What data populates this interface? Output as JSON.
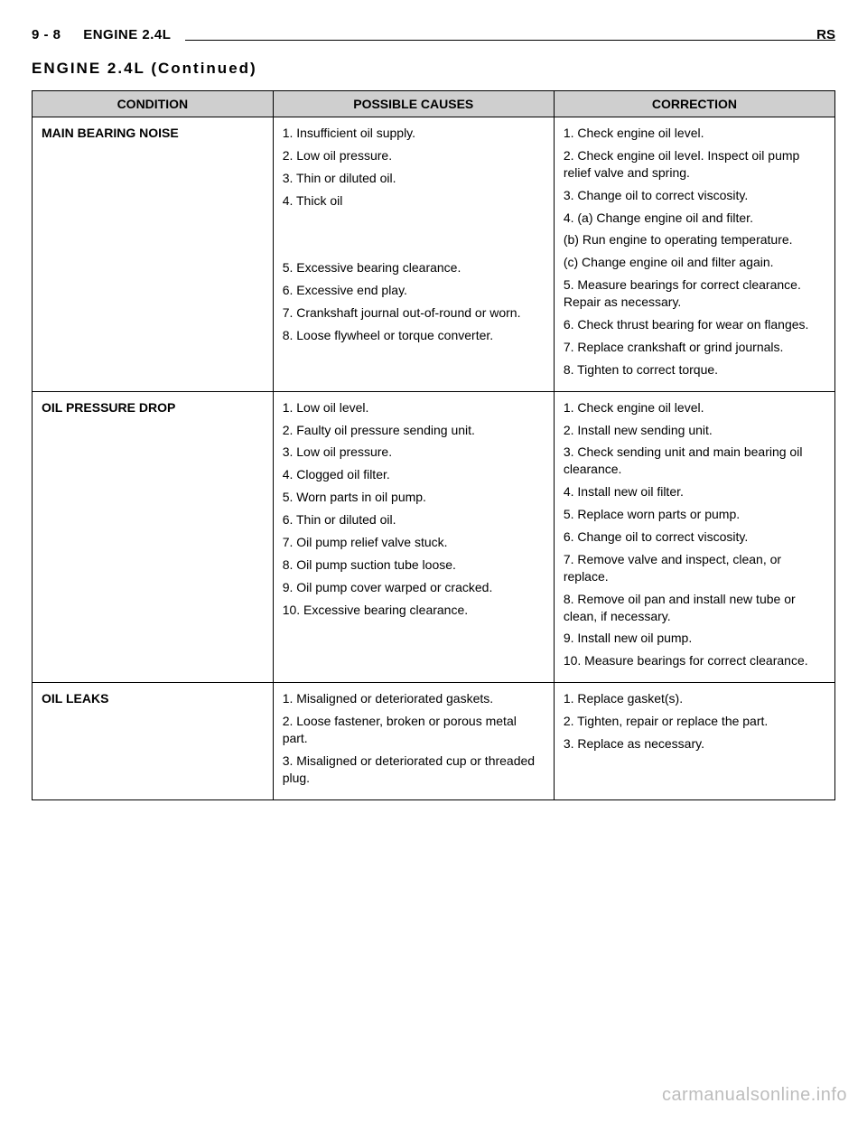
{
  "header": {
    "page_num": "9 - 8",
    "engine": "ENGINE 2.4L",
    "right": "RS"
  },
  "section_title": "ENGINE 2.4L (Continued)",
  "table": {
    "headers": [
      "CONDITION",
      "POSSIBLE CAUSES",
      "CORRECTION"
    ],
    "rows": [
      {
        "condition": "MAIN BEARING NOISE",
        "items": [
          {
            "cause": "1. Insufficient oil supply.",
            "correction": "1. Check engine oil level."
          },
          {
            "cause": "2. Low oil pressure.",
            "correction": "2. Check engine oil level. Inspect oil pump relief valve and spring."
          },
          {
            "cause": "3. Thin or diluted oil.",
            "correction": "3. Change oil to correct viscosity."
          },
          {
            "cause": "4. Thick oil",
            "correction": "4. (a) Change engine oil and filter."
          },
          {
            "cause": "",
            "correction": "(b) Run engine to operating temperature."
          },
          {
            "cause": "",
            "correction": "(c) Change engine oil and filter again."
          },
          {
            "cause": "5. Excessive bearing clearance.",
            "correction": "5. Measure bearings for correct clearance. Repair as necessary."
          },
          {
            "cause": "6. Excessive end play.",
            "correction": "6. Check thrust bearing for wear on flanges."
          },
          {
            "cause": "7. Crankshaft journal out-of-round or worn.",
            "correction": "7. Replace crankshaft or grind journals."
          },
          {
            "cause": "8. Loose flywheel or torque converter.",
            "correction": "8. Tighten to correct torque."
          }
        ]
      },
      {
        "condition": "OIL PRESSURE DROP",
        "items": [
          {
            "cause": "1. Low oil level.",
            "correction": "1. Check engine oil level."
          },
          {
            "cause": "2. Faulty oil pressure sending unit.",
            "correction": "2. Install new sending unit."
          },
          {
            "cause": "3. Low oil pressure.",
            "correction": "3. Check sending unit and main bearing oil clearance."
          },
          {
            "cause": "4. Clogged oil filter.",
            "correction": "4. Install new oil filter."
          },
          {
            "cause": "5. Worn parts in oil pump.",
            "correction": "5. Replace worn parts or pump."
          },
          {
            "cause": "6. Thin or diluted oil.",
            "correction": "6. Change oil to correct viscosity."
          },
          {
            "cause": "7. Oil pump relief valve stuck.",
            "correction": "7. Remove valve and inspect, clean, or replace."
          },
          {
            "cause": "8. Oil pump suction tube loose.",
            "correction": "8. Remove oil pan and install new tube or clean, if necessary."
          },
          {
            "cause": "9. Oil pump cover warped or cracked.",
            "correction": "9. Install new oil pump."
          },
          {
            "cause": "10. Excessive bearing clearance.",
            "correction": "10. Measure bearings for correct clearance."
          }
        ]
      },
      {
        "condition": "OIL LEAKS",
        "items": [
          {
            "cause": "1. Misaligned or deteriorated gaskets.",
            "correction": "1. Replace gasket(s)."
          },
          {
            "cause": "2. Loose fastener, broken or porous metal part.",
            "correction": "2. Tighten, repair or replace the part."
          },
          {
            "cause": "3. Misaligned or deteriorated cup or threaded plug.",
            "correction": "3. Replace as necessary."
          }
        ]
      }
    ]
  },
  "watermark": "carmanualsonline.info"
}
